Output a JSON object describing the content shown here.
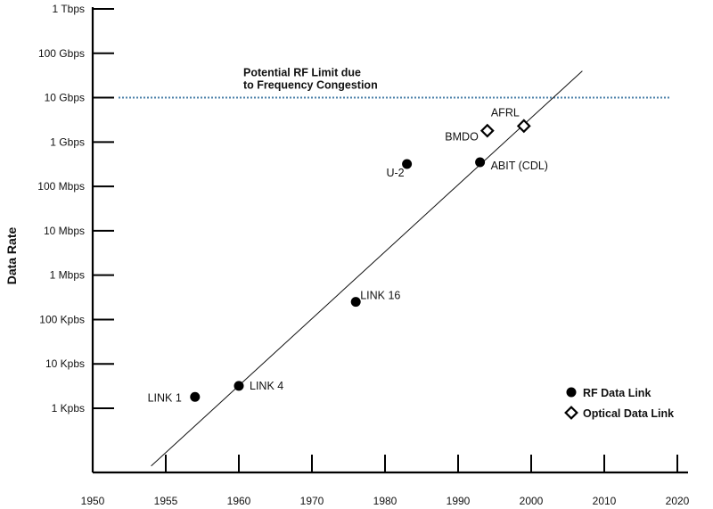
{
  "chart_data": {
    "type": "scatter",
    "title": "",
    "xlabel": "",
    "ylabel": "Data Rate",
    "y_scale": "log",
    "xlim": [
      1950,
      2020
    ],
    "x_ticks": [
      1950,
      1955,
      1960,
      1970,
      1980,
      1990,
      2000,
      2010,
      2020
    ],
    "y_ticks": [
      {
        "value": 1000,
        "label": "1 Kpbs"
      },
      {
        "value": 10000,
        "label": "10 Kpbs"
      },
      {
        "value": 100000,
        "label": "100 Kpbs"
      },
      {
        "value": 1000000,
        "label": "1 Mbps"
      },
      {
        "value": 10000000,
        "label": "10 Mbps"
      },
      {
        "value": 100000000,
        "label": "100 Mbps"
      },
      {
        "value": 1000000000,
        "label": "1 Gbps"
      },
      {
        "value": 10000000000,
        "label": "10 Gbps"
      },
      {
        "value": 100000000000,
        "label": "100 Gbps"
      },
      {
        "value": 1000000000000,
        "label": "1 Tbps"
      }
    ],
    "series": [
      {
        "name": "RF Data Link",
        "marker": "filled-circle",
        "points": [
          {
            "label": "LINK 1",
            "x": 1957,
            "y": 1800
          },
          {
            "label": "LINK 4",
            "x": 1960,
            "y": 3200
          },
          {
            "label": "LINK 16",
            "x": 1976,
            "y": 250000
          },
          {
            "label": "U-2",
            "x": 1983,
            "y": 320000000
          },
          {
            "label": "ABIT (CDL)",
            "x": 1993,
            "y": 350000000
          }
        ]
      },
      {
        "name": "Optical Data Link",
        "marker": "open-diamond",
        "points": [
          {
            "label": "BMDO",
            "x": 1994,
            "y": 1800000000
          },
          {
            "label": "AFRL",
            "x": 1999,
            "y": 2300000000
          }
        ]
      }
    ],
    "trend_line": {
      "from": {
        "x": 1954,
        "y": 50
      },
      "to": {
        "x": 2007,
        "y": 40000000000
      }
    },
    "reference_line": {
      "y": 10000000000,
      "label_line1": "Potential RF Limit due",
      "label_line2": "to Frequency Congestion",
      "color": "#4a7fa8"
    },
    "legend": {
      "position": "bottom-right"
    },
    "grid": false
  }
}
